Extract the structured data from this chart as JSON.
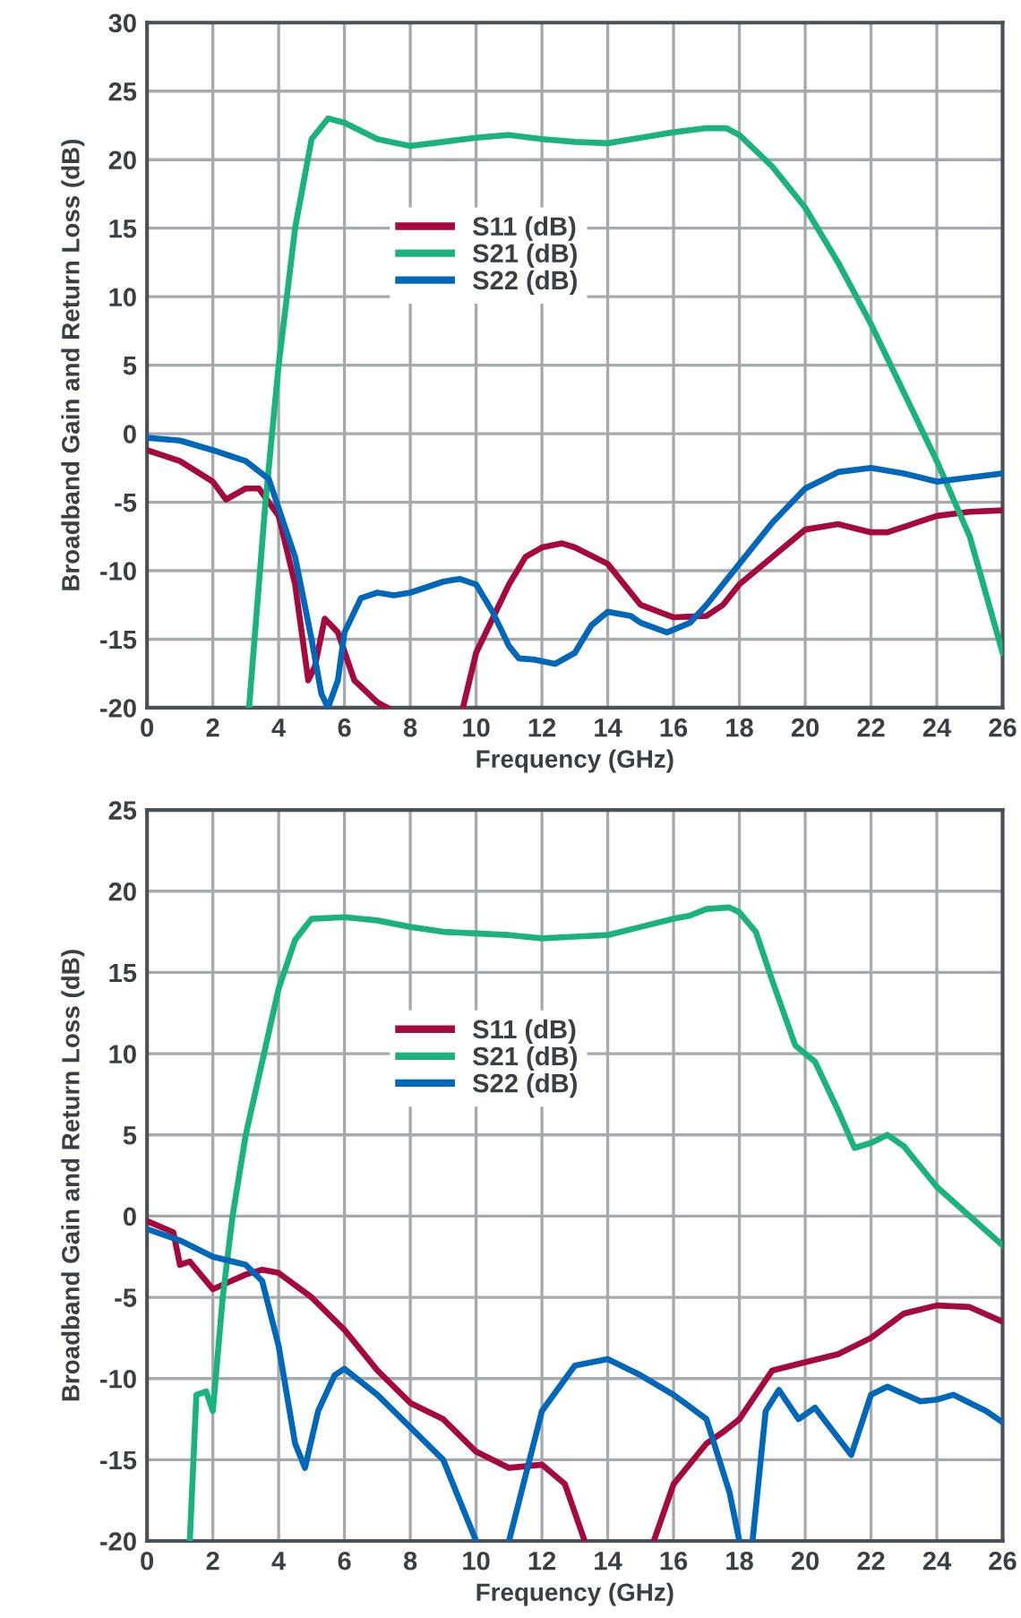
{
  "chart_data": [
    {
      "type": "line",
      "xlabel": "Frequency (GHz)",
      "ylabel": "Broadband Gain and Return Loss (dB)",
      "xlim": [
        0,
        26
      ],
      "ylim": [
        -20,
        30
      ],
      "xticks": [
        0,
        2,
        4,
        6,
        8,
        10,
        12,
        14,
        16,
        18,
        20,
        22,
        24,
        26
      ],
      "yticks": [
        -20,
        -15,
        -10,
        -5,
        0,
        5,
        10,
        15,
        20,
        25,
        30
      ],
      "grid": true,
      "legend": "center left",
      "line_style": "solid",
      "marker": "none",
      "series": [
        {
          "name": "S11 (dB)",
          "color": "#a6093d",
          "x": [
            0,
            1,
            2,
            2.4,
            3,
            3.4,
            4,
            4.5,
            4.9,
            5.1,
            5.4,
            5.8,
            6.3,
            7,
            7.3,
            8.5,
            9.6,
            10,
            11,
            11.5,
            12,
            12.6,
            13,
            14,
            14.5,
            15,
            16,
            17,
            17.5,
            18,
            19,
            20,
            21,
            22,
            22.5,
            24,
            25,
            26
          ],
          "values": [
            -1.2,
            -2,
            -3.5,
            -4.8,
            -4,
            -4,
            -6,
            -11,
            -18,
            -17,
            -13.5,
            -14.5,
            -18,
            -19.6,
            -20,
            null,
            -20,
            -16,
            -11,
            -9,
            -8.3,
            -8,
            -8.3,
            -9.5,
            -11,
            -12.5,
            -13.4,
            -13.3,
            -12.5,
            -11,
            -9,
            -7,
            -6.6,
            -7.2,
            -7.2,
            -6,
            -5.7,
            -5.6
          ]
        },
        {
          "name": "S21 (dB)",
          "color": "#1ab37d",
          "x": [
            3.1,
            3.6,
            4,
            4.5,
            5,
            5.5,
            6,
            7,
            8,
            9,
            10,
            11,
            12,
            13,
            14,
            15,
            16,
            17,
            17.6,
            18,
            19,
            20,
            21,
            22,
            23,
            24,
            25,
            26
          ],
          "values": [
            -20,
            -5,
            5,
            15,
            21.5,
            23,
            22.7,
            21.5,
            21,
            21.3,
            21.6,
            21.8,
            21.5,
            21.3,
            21.2,
            21.6,
            22,
            22.3,
            22.3,
            21.8,
            19.5,
            16.5,
            12.5,
            8,
            3,
            -2,
            -7.5,
            -16
          ]
        },
        {
          "name": "S22 (dB)",
          "color": "#0067b9",
          "x": [
            0,
            1,
            2,
            3,
            3.7,
            4.5,
            5,
            5.3,
            5.5,
            5.8,
            6,
            6.5,
            7,
            7.5,
            8,
            9,
            9.5,
            10,
            10.5,
            11,
            11.3,
            11.8,
            12.4,
            13,
            13.5,
            14,
            14.7,
            15,
            15.8,
            16.5,
            17,
            18,
            19,
            20,
            21,
            22,
            23,
            24,
            25,
            26
          ],
          "values": [
            -0.3,
            -0.5,
            -1.2,
            -2,
            -3.3,
            -9,
            -15,
            -19,
            -20,
            -18,
            -14.5,
            -12,
            -11.6,
            -11.8,
            -11.6,
            -10.8,
            -10.6,
            -11,
            -13,
            -15.5,
            -16.4,
            -16.5,
            -16.8,
            -16,
            -14,
            -13,
            -13.3,
            -13.8,
            -14.5,
            -13.8,
            -12.5,
            -9.5,
            -6.5,
            -4,
            -2.8,
            -2.5,
            -2.9,
            -3.5,
            -3.2,
            -2.9
          ]
        }
      ]
    },
    {
      "type": "line",
      "xlabel": "Frequency (GHz)",
      "ylabel": "Broadband Gain and Return Loss (dB)",
      "xlim": [
        0,
        26
      ],
      "ylim": [
        -20,
        25
      ],
      "xticks": [
        0,
        2,
        4,
        6,
        8,
        10,
        12,
        14,
        16,
        18,
        20,
        22,
        24,
        26
      ],
      "yticks": [
        -20,
        -15,
        -10,
        -5,
        0,
        5,
        10,
        15,
        20,
        25
      ],
      "grid": true,
      "legend": "center left",
      "line_style": "solid",
      "marker": "none",
      "series": [
        {
          "name": "S11 (dB)",
          "color": "#a6093d",
          "x": [
            0,
            0.8,
            1,
            1.3,
            2,
            3,
            3.5,
            4,
            5,
            6,
            7,
            8,
            9,
            10,
            11,
            12,
            12.7,
            13.3,
            14.3,
            15.4,
            16,
            17,
            17.5,
            18,
            19,
            20,
            21,
            22,
            23,
            24,
            25,
            26
          ],
          "values": [
            -0.3,
            -1,
            -3,
            -2.8,
            -4.5,
            -3.6,
            -3.3,
            -3.5,
            -5,
            -7,
            -9.5,
            -11.5,
            -12.5,
            -14.5,
            -15.5,
            -15.3,
            -16.5,
            -20,
            null,
            -20,
            -16.5,
            -14,
            -13.3,
            -12.5,
            -9.5,
            -9,
            -8.5,
            -7.5,
            -6,
            -5.5,
            -5.6,
            -6.5
          ]
        },
        {
          "name": "S21 (dB)",
          "color": "#1ab37d",
          "x": [
            1.3,
            1.5,
            1.8,
            2,
            2.3,
            2.6,
            3,
            4,
            4.5,
            5,
            6,
            7,
            8,
            9,
            10,
            11,
            12,
            13,
            14,
            15,
            16,
            16.5,
            17,
            17.7,
            18,
            18.5,
            19,
            19.7,
            20.3,
            21,
            21.5,
            22,
            22.5,
            23,
            24,
            25,
            26
          ],
          "values": [
            -20,
            -11,
            -10.8,
            -12,
            -5,
            0,
            5,
            14,
            17,
            18.3,
            18.4,
            18.2,
            17.8,
            17.5,
            17.4,
            17.3,
            17.1,
            17.2,
            17.3,
            17.8,
            18.3,
            18.5,
            18.9,
            19,
            18.7,
            17.5,
            14.5,
            10.5,
            9.5,
            6.5,
            4.2,
            4.5,
            5,
            4.3,
            1.8,
            0,
            -1.8
          ]
        },
        {
          "name": "S22 (dB)",
          "color": "#0067b9",
          "x": [
            0,
            1,
            2,
            3,
            3.5,
            4,
            4.5,
            4.8,
            5.2,
            5.7,
            6,
            7,
            8,
            9,
            9.6,
            10,
            10.5,
            11,
            11.5,
            12,
            13,
            14,
            15,
            16,
            17,
            17.7,
            18,
            18.2,
            18.4,
            18.8,
            19.2,
            19.8,
            20.3,
            21.4,
            22,
            22.5,
            23.5,
            24,
            24.5,
            25.5,
            26
          ],
          "values": [
            -0.8,
            -1.5,
            -2.5,
            -3,
            -4,
            -8,
            -14,
            -15.5,
            -12,
            -9.8,
            -9.4,
            -11,
            -13,
            -15,
            -18,
            -20,
            null,
            -20,
            -16,
            -12,
            -9.2,
            -8.8,
            -9.8,
            -11,
            -12.5,
            -17,
            -20,
            null,
            -20,
            -12,
            -10.7,
            -12.5,
            -11.8,
            -14.7,
            -11,
            -10.5,
            -11.4,
            -11.3,
            -11,
            -12,
            -12.7
          ]
        }
      ]
    }
  ]
}
